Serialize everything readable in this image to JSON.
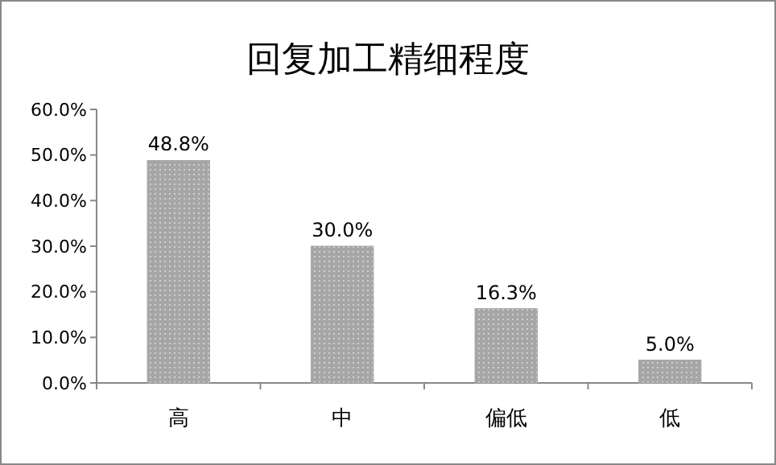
{
  "chart_data": {
    "type": "bar",
    "title": "回复加工精细程度",
    "categories": [
      "高",
      "中",
      "偏低",
      "低"
    ],
    "values": [
      48.8,
      30.0,
      16.3,
      5.0
    ],
    "value_labels": [
      "48.8%",
      "30.0%",
      "16.3%",
      "5.0%"
    ],
    "color": "#a6a6a6",
    "ylim": [
      0,
      60
    ],
    "yticks": [
      {
        "value": 0,
        "label": "0.0%"
      },
      {
        "value": 10,
        "label": "10.0%"
      },
      {
        "value": 20,
        "label": "20.0%"
      },
      {
        "value": 30,
        "label": "30.0%"
      },
      {
        "value": 40,
        "label": "40.0%"
      },
      {
        "value": 50,
        "label": "50.0%"
      },
      {
        "value": 60,
        "label": "60.0%"
      }
    ],
    "grid": false
  }
}
